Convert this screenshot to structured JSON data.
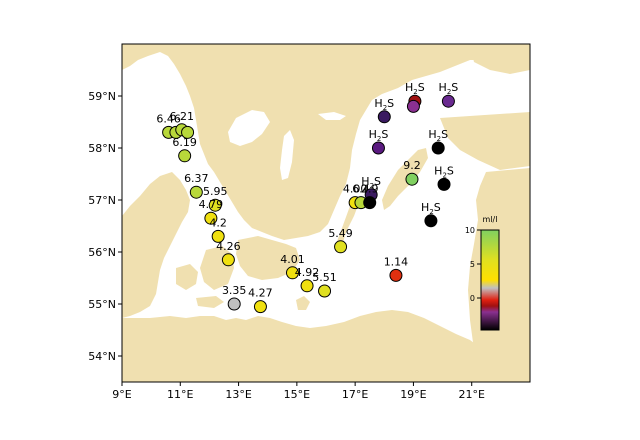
{
  "map": {
    "lon_range": [
      9,
      23
    ],
    "lat_range": [
      53.5,
      60.0
    ],
    "x_ticks": [
      "9°E",
      "11°E",
      "13°E",
      "15°E",
      "17°E",
      "19°E",
      "21°E"
    ],
    "y_ticks": [
      "54°N",
      "55°N",
      "56°N",
      "57°N",
      "58°N",
      "59°N"
    ],
    "land_color": "#f0e0b0",
    "water_color": "#ffffff"
  },
  "stations": [
    {
      "lon": 10.6,
      "lat": 58.3,
      "label": "6.46",
      "color": "#b8d83a"
    },
    {
      "lon": 10.85,
      "lat": 58.3,
      "label": "",
      "color": "#b8d83a"
    },
    {
      "lon": 11.05,
      "lat": 58.35,
      "label": "6.21",
      "color": "#b8d83a"
    },
    {
      "lon": 11.25,
      "lat": 58.3,
      "label": "",
      "color": "#b8d83a"
    },
    {
      "lon": 11.15,
      "lat": 57.85,
      "label": "6.19",
      "color": "#b8d83a"
    },
    {
      "lon": 11.55,
      "lat": 57.15,
      "label": "6.37",
      "color": "#b8d83a"
    },
    {
      "lon": 12.2,
      "lat": 56.9,
      "label": "5.95",
      "color": "#e0e020"
    },
    {
      "lon": 12.05,
      "lat": 56.65,
      "label": "4.79",
      "color": "#f0e010"
    },
    {
      "lon": 12.3,
      "lat": 56.3,
      "label": "4.2",
      "color": "#f0e010"
    },
    {
      "lon": 12.65,
      "lat": 55.85,
      "label": "4.26",
      "color": "#f0e010"
    },
    {
      "lon": 12.85,
      "lat": 55.0,
      "label": "3.35",
      "color": "#c0c0c0"
    },
    {
      "lon": 13.75,
      "lat": 54.95,
      "label": "4.27",
      "color": "#f0e010"
    },
    {
      "lon": 14.85,
      "lat": 55.6,
      "label": "4.01",
      "color": "#f0e010"
    },
    {
      "lon": 15.35,
      "lat": 55.35,
      "label": "4.92",
      "color": "#f0e010"
    },
    {
      "lon": 15.95,
      "lat": 55.25,
      "label": "5.51",
      "color": "#e0e020"
    },
    {
      "lon": 16.5,
      "lat": 56.1,
      "label": "5.49",
      "color": "#e0e020"
    },
    {
      "lon": 17.0,
      "lat": 56.95,
      "label": "4.00",
      "color": "#f0e010"
    },
    {
      "lon": 17.2,
      "lat": 56.95,
      "label": "6.4",
      "color": "#b8d83a"
    },
    {
      "lon": 17.55,
      "lat": 57.1,
      "label": "H2S",
      "color": "#3a1a60"
    },
    {
      "lon": 17.5,
      "lat": 56.95,
      "label": "2.9",
      "color": "#000000"
    },
    {
      "lon": 18.0,
      "lat": 58.6,
      "label": "H2S",
      "color": "#3a1a60"
    },
    {
      "lon": 17.8,
      "lat": 58.0,
      "label": "H2S",
      "color": "#5a1a80"
    },
    {
      "lon": 19.05,
      "lat": 58.9,
      "label": "H2S",
      "color": "#a01010"
    },
    {
      "lon": 19.0,
      "lat": 58.8,
      "label": "",
      "color": "#8a3090"
    },
    {
      "lon": 20.2,
      "lat": 58.9,
      "label": "H2S",
      "color": "#6a2a90"
    },
    {
      "lon": 19.85,
      "lat": 58.0,
      "label": "H2S",
      "color": "#000000"
    },
    {
      "lon": 18.95,
      "lat": 57.4,
      "label": "9.2",
      "color": "#80d060"
    },
    {
      "lon": 20.05,
      "lat": 57.3,
      "label": "H2S",
      "color": "#000000"
    },
    {
      "lon": 19.6,
      "lat": 56.6,
      "label": "H2S",
      "color": "#000000"
    },
    {
      "lon": 18.4,
      "lat": 55.55,
      "label": "1.14",
      "color": "#e03010"
    }
  ],
  "colorbar": {
    "unit": "ml/l",
    "ticks": [
      "10",
      "5",
      "0"
    ],
    "stops": [
      {
        "offset": "0%",
        "color": "#80d060"
      },
      {
        "offset": "30%",
        "color": "#e0e020"
      },
      {
        "offset": "50%",
        "color": "#ffe000"
      },
      {
        "offset": "58%",
        "color": "#c0c0c0"
      },
      {
        "offset": "70%",
        "color": "#e02010"
      },
      {
        "offset": "76%",
        "color": "#a01010"
      },
      {
        "offset": "82%",
        "color": "#8a3090"
      },
      {
        "offset": "100%",
        "color": "#000000"
      }
    ]
  }
}
